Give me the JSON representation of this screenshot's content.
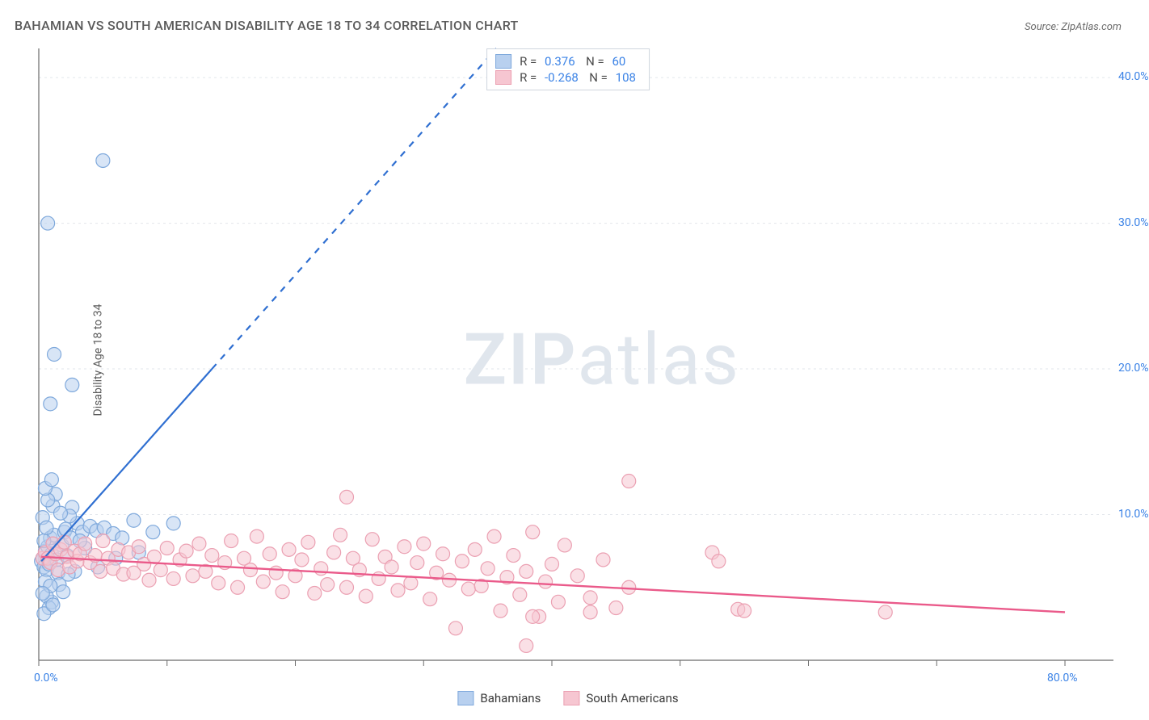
{
  "title": "BAHAMIAN VS SOUTH AMERICAN DISABILITY AGE 18 TO 34 CORRELATION CHART",
  "source_label": "Source: ZipAtlas.com",
  "ylabel": "Disability Age 18 to 34",
  "watermark": {
    "bold": "ZIP",
    "rest": "atlas"
  },
  "colors": {
    "blue_fill": "#b8d0ef",
    "blue_stroke": "#7fa9dc",
    "blue_line": "#2f6fd1",
    "pink_fill": "#f6c6d1",
    "pink_stroke": "#eba0b2",
    "pink_line": "#ea5a8a",
    "grid": "#e2e6eb",
    "axis": "#6a6a6a",
    "tick_label": "#3a82e6"
  },
  "r_legend": {
    "rows": [
      {
        "swatch_fill": "#b8d0ef",
        "swatch_stroke": "#7fa9dc",
        "r": "0.376",
        "n": "60"
      },
      {
        "swatch_fill": "#f6c6d1",
        "swatch_stroke": "#eba0b2",
        "r": "-0.268",
        "n": "108"
      }
    ],
    "r_prefix": "R  = ",
    "n_prefix": "N  = "
  },
  "bottom_legend": [
    {
      "swatch_fill": "#b8d0ef",
      "swatch_stroke": "#7fa9dc",
      "label": "Bahamians"
    },
    {
      "swatch_fill": "#f6c6d1",
      "swatch_stroke": "#eba0b2",
      "label": "South Americans"
    }
  ],
  "chart": {
    "type": "scatter",
    "xlim": [
      0,
      80
    ],
    "ylim": [
      0,
      42
    ],
    "x_ticks": [
      0,
      10,
      20,
      30,
      40,
      50,
      60,
      70,
      80
    ],
    "y_gridlines": [
      10,
      20,
      30,
      40
    ],
    "x_tick_labels": {
      "0": "0.0%",
      "80": "80.0%"
    },
    "y_tick_labels": {
      "10": "10.0%",
      "20": "20.0%",
      "30": "30.0%",
      "40": "40.0%"
    },
    "marker_radius": 8.5,
    "marker_opacity": 0.55,
    "marker_stroke_width": 1.2,
    "background": "#ffffff",
    "series": [
      {
        "key": "bahamians",
        "fill": "#b8d0ef",
        "stroke": "#7fa9dc",
        "points": [
          [
            0.2,
            6.8
          ],
          [
            0.3,
            7.0
          ],
          [
            0.4,
            6.4
          ],
          [
            0.5,
            7.5
          ],
          [
            0.6,
            6.2
          ],
          [
            0.7,
            7.8
          ],
          [
            0.8,
            6.6
          ],
          [
            0.5,
            5.4
          ],
          [
            0.9,
            8.4
          ],
          [
            0.3,
            9.8
          ],
          [
            1.0,
            7.3
          ],
          [
            1.2,
            8.6
          ],
          [
            1.4,
            6.9
          ],
          [
            1.0,
            4.0
          ],
          [
            0.6,
            4.4
          ],
          [
            1.5,
            6.0
          ],
          [
            0.8,
            3.6
          ],
          [
            0.4,
            3.2
          ],
          [
            1.8,
            7.9
          ],
          [
            1.6,
            5.2
          ],
          [
            2.0,
            8.8
          ],
          [
            2.2,
            7.2
          ],
          [
            2.1,
            9.0
          ],
          [
            2.5,
            8.4
          ],
          [
            3.0,
            9.4
          ],
          [
            3.4,
            8.8
          ],
          [
            2.8,
            6.1
          ],
          [
            1.1,
            10.6
          ],
          [
            1.3,
            11.4
          ],
          [
            2.6,
            10.5
          ],
          [
            4.0,
            9.2
          ],
          [
            4.5,
            8.9
          ],
          [
            5.1,
            9.1
          ],
          [
            5.8,
            8.7
          ],
          [
            6.5,
            8.4
          ],
          [
            7.4,
            9.6
          ],
          [
            8.9,
            8.8
          ],
          [
            10.5,
            9.4
          ],
          [
            3.6,
            7.7
          ],
          [
            2.3,
            5.9
          ],
          [
            0.7,
            11.0
          ],
          [
            0.5,
            11.8
          ],
          [
            1.0,
            12.4
          ],
          [
            0.9,
            17.6
          ],
          [
            2.6,
            18.9
          ],
          [
            1.2,
            21.0
          ],
          [
            0.7,
            30.0
          ],
          [
            5.0,
            34.3
          ],
          [
            2.4,
            9.9
          ],
          [
            3.2,
            8.2
          ],
          [
            0.4,
            8.2
          ],
          [
            0.6,
            9.1
          ],
          [
            1.7,
            10.1
          ],
          [
            0.9,
            5.1
          ],
          [
            0.3,
            4.6
          ],
          [
            1.1,
            3.8
          ],
          [
            6.0,
            7.0
          ],
          [
            7.8,
            7.4
          ],
          [
            4.6,
            6.4
          ],
          [
            1.9,
            4.7
          ]
        ],
        "trend": {
          "p1": [
            0.2,
            6.8
          ],
          "p2": [
            13.5,
            20.0
          ],
          "dash_beyond_x": 13.5,
          "color": "#2f6fd1",
          "width": 2.2
        }
      },
      {
        "key": "south_americans",
        "fill": "#f6c6d1",
        "stroke": "#eba0b2",
        "points": [
          [
            0.3,
            7.0
          ],
          [
            0.5,
            7.4
          ],
          [
            0.7,
            7.0
          ],
          [
            0.9,
            6.7
          ],
          [
            1.1,
            8.0
          ],
          [
            1.3,
            7.3
          ],
          [
            1.5,
            6.2
          ],
          [
            1.7,
            7.6
          ],
          [
            2.0,
            8.1
          ],
          [
            2.2,
            7.1
          ],
          [
            2.4,
            6.4
          ],
          [
            2.8,
            7.5
          ],
          [
            3.0,
            6.8
          ],
          [
            3.2,
            7.3
          ],
          [
            3.6,
            8.0
          ],
          [
            4.0,
            6.7
          ],
          [
            4.4,
            7.2
          ],
          [
            4.8,
            6.1
          ],
          [
            5.0,
            8.2
          ],
          [
            5.4,
            7.0
          ],
          [
            5.8,
            6.3
          ],
          [
            6.2,
            7.6
          ],
          [
            6.6,
            5.9
          ],
          [
            7.0,
            7.4
          ],
          [
            7.4,
            6.0
          ],
          [
            7.8,
            7.8
          ],
          [
            8.2,
            6.6
          ],
          [
            8.6,
            5.5
          ],
          [
            9.0,
            7.1
          ],
          [
            9.5,
            6.2
          ],
          [
            10.0,
            7.7
          ],
          [
            10.5,
            5.6
          ],
          [
            11.0,
            6.9
          ],
          [
            11.5,
            7.5
          ],
          [
            12.0,
            5.8
          ],
          [
            12.5,
            8.0
          ],
          [
            13.0,
            6.1
          ],
          [
            13.5,
            7.2
          ],
          [
            14.0,
            5.3
          ],
          [
            14.5,
            6.7
          ],
          [
            15.0,
            8.2
          ],
          [
            15.5,
            5.0
          ],
          [
            16.0,
            7.0
          ],
          [
            16.5,
            6.2
          ],
          [
            17.0,
            8.5
          ],
          [
            17.5,
            5.4
          ],
          [
            18.0,
            7.3
          ],
          [
            18.5,
            6.0
          ],
          [
            19.0,
            4.7
          ],
          [
            19.5,
            7.6
          ],
          [
            20.0,
            5.8
          ],
          [
            20.5,
            6.9
          ],
          [
            21.0,
            8.1
          ],
          [
            21.5,
            4.6
          ],
          [
            22.0,
            6.3
          ],
          [
            22.5,
            5.2
          ],
          [
            23.0,
            7.4
          ],
          [
            23.5,
            8.6
          ],
          [
            24.0,
            5.0
          ],
          [
            24.5,
            7.0
          ],
          [
            25.0,
            6.2
          ],
          [
            25.5,
            4.4
          ],
          [
            26.0,
            8.3
          ],
          [
            26.5,
            5.6
          ],
          [
            27.0,
            7.1
          ],
          [
            27.5,
            6.4
          ],
          [
            28.0,
            4.8
          ],
          [
            28.5,
            7.8
          ],
          [
            29.0,
            5.3
          ],
          [
            29.5,
            6.7
          ],
          [
            30.0,
            8.0
          ],
          [
            30.5,
            4.2
          ],
          [
            31.0,
            6.0
          ],
          [
            31.5,
            7.3
          ],
          [
            32.0,
            5.5
          ],
          [
            32.5,
            2.2
          ],
          [
            33.0,
            6.8
          ],
          [
            33.5,
            4.9
          ],
          [
            34.0,
            7.6
          ],
          [
            34.5,
            5.1
          ],
          [
            35.0,
            6.3
          ],
          [
            35.5,
            8.5
          ],
          [
            36.0,
            3.4
          ],
          [
            36.5,
            5.7
          ],
          [
            37.0,
            7.2
          ],
          [
            37.5,
            4.5
          ],
          [
            38.0,
            6.1
          ],
          [
            38.5,
            8.8
          ],
          [
            39.0,
            3.0
          ],
          [
            39.5,
            5.4
          ],
          [
            40.0,
            6.6
          ],
          [
            40.5,
            4.0
          ],
          [
            41.0,
            7.9
          ],
          [
            42.0,
            5.8
          ],
          [
            43.0,
            4.3
          ],
          [
            44.0,
            6.9
          ],
          [
            45.0,
            3.6
          ],
          [
            46.0,
            5.0
          ],
          [
            38.0,
            1.0
          ],
          [
            24.0,
            11.2
          ],
          [
            46.0,
            12.3
          ],
          [
            52.5,
            7.4
          ],
          [
            53.0,
            6.8
          ],
          [
            54.5,
            3.5
          ],
          [
            55.0,
            3.4
          ],
          [
            66.0,
            3.3
          ],
          [
            43.0,
            3.3
          ],
          [
            38.5,
            3.0
          ]
        ],
        "trend": {
          "p1": [
            0.2,
            7.1
          ],
          "p2": [
            80.0,
            3.3
          ],
          "color": "#ea5a8a",
          "width": 2.4
        }
      }
    ]
  }
}
